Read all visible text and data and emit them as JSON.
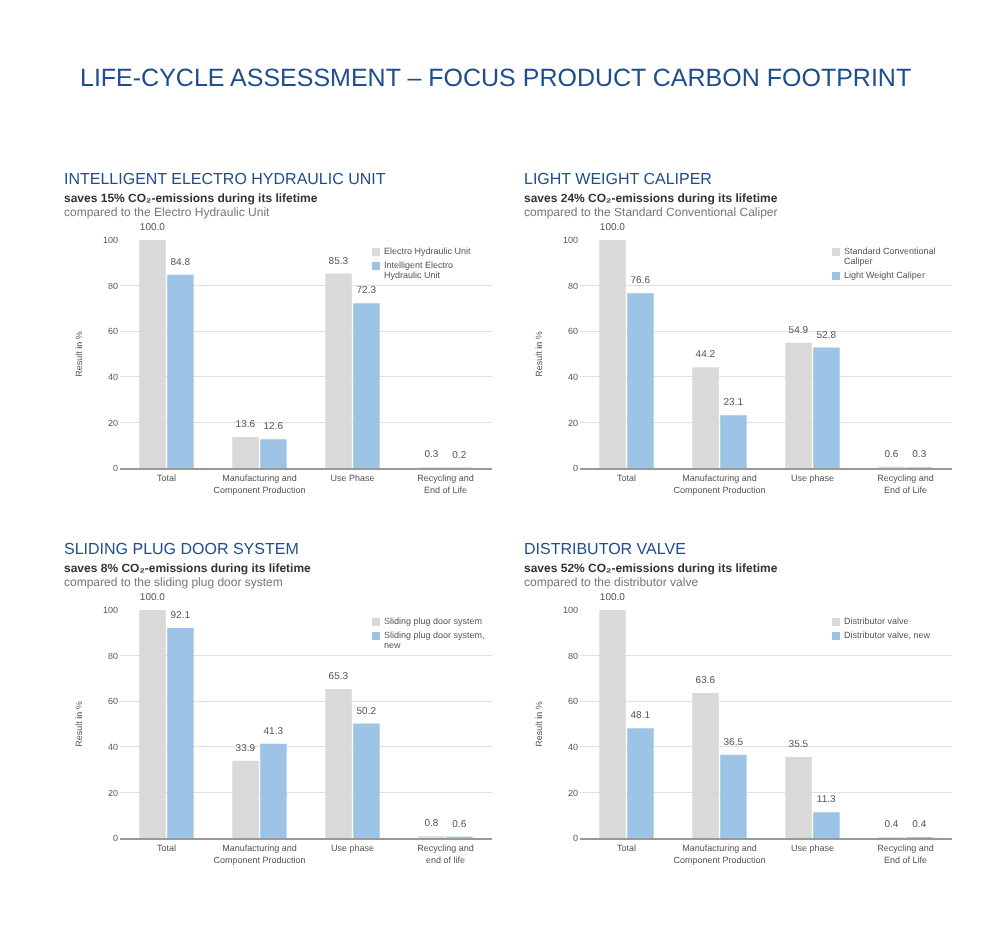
{
  "chart_data": [
    {
      "type": "other",
      "title": "LIFE-CYCLE ASSESSMENT – FOCUS PRODUCT CARBON FOOTPRINT"
    },
    {
      "type": "bar",
      "title": "INTELLIGENT ELECTRO HYDRAULIC UNIT",
      "subtitle": "saves 15% CO₂-emissions during its lifetime",
      "annotations": [
        "compared to the Electro Hydraulic Unit"
      ],
      "ylabel": "Result in %",
      "categories": [
        "Total",
        "Manufacturing and Component Production",
        "Use Phase",
        "Recycling and End of Life"
      ],
      "series": [
        {
          "name": "Electro Hydraulic Unit",
          "color": "#d9d9d9",
          "values": [
            100.0,
            13.6,
            85.3,
            0.3
          ],
          "value_labels": [
            "100.0",
            "13.6",
            "85.3",
            "0.3"
          ]
        },
        {
          "name": "Intelligent Electro Hydraulic Unit",
          "color": "#9dc3e6",
          "values": [
            84.8,
            12.6,
            72.3,
            0.2
          ],
          "value_labels": [
            "84.8",
            "12.6",
            "72.3",
            "0.2"
          ]
        }
      ],
      "ylim": [
        0,
        100
      ],
      "yticks": [
        0,
        20,
        40,
        60,
        80,
        100
      ],
      "grid": "y",
      "legend": "top right"
    },
    {
      "type": "bar",
      "title": "LIGHT WEIGHT CALIPER",
      "subtitle": "saves 24% CO₂-emissions during its lifetime",
      "annotations": [
        "compared to the Standard Conventional Caliper"
      ],
      "ylabel": "Result in %",
      "categories": [
        "Total",
        "Manufacturing and Component Production",
        "Use phase",
        "Recycling and End of Life"
      ],
      "series": [
        {
          "name": "Standard Conventional Caliper",
          "color": "#d9d9d9",
          "values": [
            100.0,
            44.2,
            54.9,
            0.6
          ],
          "value_labels": [
            "100.0",
            "44.2",
            "54.9",
            "0.6"
          ]
        },
        {
          "name": "Light Weight Caliper",
          "color": "#9dc3e6",
          "values": [
            76.6,
            23.1,
            52.8,
            0.3
          ],
          "value_labels": [
            "76.6",
            "23.1",
            "52.8",
            "0.3"
          ]
        }
      ],
      "ylim": [
        0,
        100
      ],
      "yticks": [
        0,
        20,
        40,
        60,
        80,
        100
      ],
      "grid": "y",
      "legend": "top right"
    },
    {
      "type": "bar",
      "title": "SLIDING PLUG DOOR SYSTEM",
      "subtitle": "saves 8% CO₂-emissions during its lifetime",
      "annotations": [
        "compared to the sliding plug door system"
      ],
      "ylabel": "Result in %",
      "categories": [
        "Total",
        "Manufacturing and Component Production",
        "Use phase",
        "Recycling and end of life"
      ],
      "series": [
        {
          "name": "Sliding plug door system",
          "color": "#d9d9d9",
          "values": [
            100.0,
            33.9,
            65.3,
            0.8
          ],
          "value_labels": [
            "100.0",
            "33.9",
            "65.3",
            "0.8"
          ]
        },
        {
          "name": "Sliding plug door system, new",
          "color": "#9dc3e6",
          "values": [
            92.1,
            41.3,
            50.2,
            0.6
          ],
          "value_labels": [
            "92.1",
            "41.3",
            "50.2",
            "0.6"
          ]
        }
      ],
      "ylim": [
        0,
        100
      ],
      "yticks": [
        0,
        20,
        40,
        60,
        80,
        100
      ],
      "grid": "y",
      "legend": "top right"
    },
    {
      "type": "bar",
      "title": "DISTRIBUTOR VALVE",
      "subtitle": "saves 52% CO₂-emissions during its lifetime",
      "annotations": [
        "compared to the distributor valve"
      ],
      "ylabel": "Result in %",
      "categories": [
        "Total",
        "Manufacturing and Component Production",
        "Use phase",
        "Recycling and End of Life"
      ],
      "series": [
        {
          "name": "Distributor valve",
          "color": "#d9d9d9",
          "values": [
            100.0,
            63.6,
            35.5,
            0.4
          ],
          "value_labels": [
            "100.0",
            "63.6",
            "35.5",
            "0.4"
          ]
        },
        {
          "name": "Distributor valve, new",
          "color": "#9dc3e6",
          "values": [
            48.1,
            36.5,
            11.3,
            0.4
          ],
          "value_labels": [
            "48.1",
            "36.5",
            "11.3",
            "0.4"
          ]
        }
      ],
      "ylim": [
        0,
        100
      ],
      "yticks": [
        0,
        20,
        40,
        60,
        80,
        100
      ],
      "grid": "y",
      "legend": "top right"
    }
  ]
}
